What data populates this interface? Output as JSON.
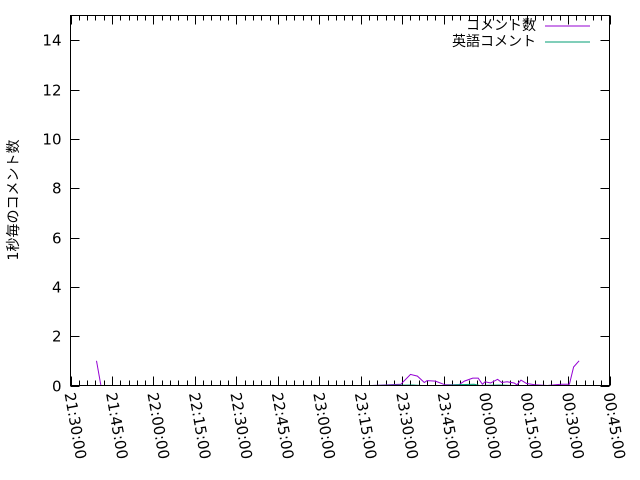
{
  "chart_data": {
    "type": "line",
    "title": "",
    "xlabel": "",
    "ylabel": "1秒毎のコメント数",
    "xlim": [
      "21:30:00",
      "00:45:00"
    ],
    "ylim": [
      0,
      15
    ],
    "x_ticks": [
      "21:30:00",
      "21:45:00",
      "22:00:00",
      "22:15:00",
      "22:30:00",
      "22:45:00",
      "23:00:00",
      "23:15:00",
      "23:30:00",
      "23:45:00",
      "00:00:00",
      "00:15:00",
      "00:30:00",
      "00:45:00"
    ],
    "y_ticks": [
      0,
      2,
      4,
      6,
      8,
      10,
      12,
      14
    ],
    "grid": false,
    "legend_position": "top-right",
    "series": [
      {
        "name": "コメント数",
        "color": "#9400d3",
        "points": [
          [
            "21:39:24",
            1.0
          ],
          [
            "21:41:00",
            0
          ],
          [
            "23:19:00",
            0
          ],
          [
            "23:29:30",
            0.05
          ],
          [
            "23:33:00",
            0.45
          ],
          [
            "23:35:30",
            0.38
          ],
          [
            "23:38:00",
            0.12
          ],
          [
            "23:39:00",
            0.2
          ],
          [
            "23:42:00",
            0.18
          ],
          [
            "23:45:30",
            0.03
          ],
          [
            "23:50:30",
            0.03
          ],
          [
            "23:52:30",
            0.18
          ],
          [
            "23:55:30",
            0.3
          ],
          [
            "23:57:30",
            0.3
          ],
          [
            "23:59:00",
            0.05
          ],
          [
            "00:00:00",
            0.15
          ],
          [
            "00:02:00",
            0.1
          ],
          [
            "00:04:30",
            0.25
          ],
          [
            "00:06:00",
            0.12
          ],
          [
            "00:08:00",
            0.15
          ],
          [
            "00:10:30",
            0.1
          ],
          [
            "00:11:30",
            0.03
          ],
          [
            "00:13:00",
            0.22
          ],
          [
            "00:15:00",
            0.08
          ],
          [
            "00:18:00",
            0.03
          ],
          [
            "00:22:30",
            0
          ],
          [
            "00:27:30",
            0.05
          ],
          [
            "00:30:30",
            0.05
          ],
          [
            "00:32:00",
            0.75
          ],
          [
            "00:34:00",
            1.0
          ]
        ]
      },
      {
        "name": "英語コメント",
        "color": "#009e73",
        "points": [
          [
            "23:19:00",
            0
          ],
          [
            "23:34:00",
            0.02
          ],
          [
            "23:37:00",
            0
          ],
          [
            "23:45:00",
            0
          ],
          [
            "23:50:00",
            0.03
          ],
          [
            "23:56:00",
            0.05
          ],
          [
            "23:58:00",
            0
          ],
          [
            "00:05:00",
            0.02
          ],
          [
            "00:10:00",
            0
          ],
          [
            "00:30:00",
            0
          ]
        ]
      }
    ]
  }
}
